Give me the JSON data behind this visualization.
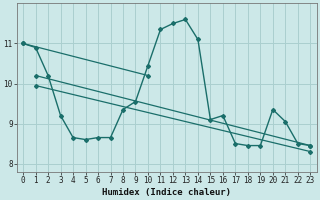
{
  "xlabel": "Humidex (Indice chaleur)",
  "bg_color": "#cce8e8",
  "grid_color": "#aacfcf",
  "line_color": "#1a6e6a",
  "xlim": [
    -0.5,
    23.5
  ],
  "ylim": [
    7.8,
    12.0
  ],
  "yticks": [
    8,
    9,
    10,
    11
  ],
  "xticks": [
    0,
    1,
    2,
    3,
    4,
    5,
    6,
    7,
    8,
    9,
    10,
    11,
    12,
    13,
    14,
    15,
    16,
    17,
    18,
    19,
    20,
    21,
    22,
    23
  ],
  "line1_x": [
    0,
    10
  ],
  "line1_y": [
    11.0,
    10.2
  ],
  "line2_x": [
    1,
    23
  ],
  "line2_y": [
    10.2,
    8.45
  ],
  "line3_x": [
    1,
    23
  ],
  "line3_y": [
    9.95,
    8.3
  ],
  "main_x": [
    0,
    1,
    2,
    3,
    4,
    5,
    6,
    7,
    8,
    9,
    10,
    11,
    12,
    13,
    14,
    15,
    16,
    17,
    18,
    19,
    20,
    21,
    22,
    23
  ],
  "main_y": [
    11.0,
    10.9,
    10.2,
    9.2,
    8.65,
    8.6,
    8.65,
    8.65,
    9.35,
    9.55,
    10.45,
    11.35,
    11.5,
    11.6,
    11.1,
    9.1,
    9.2,
    8.5,
    8.45,
    8.45,
    9.35,
    9.05,
    8.5,
    8.45
  ]
}
